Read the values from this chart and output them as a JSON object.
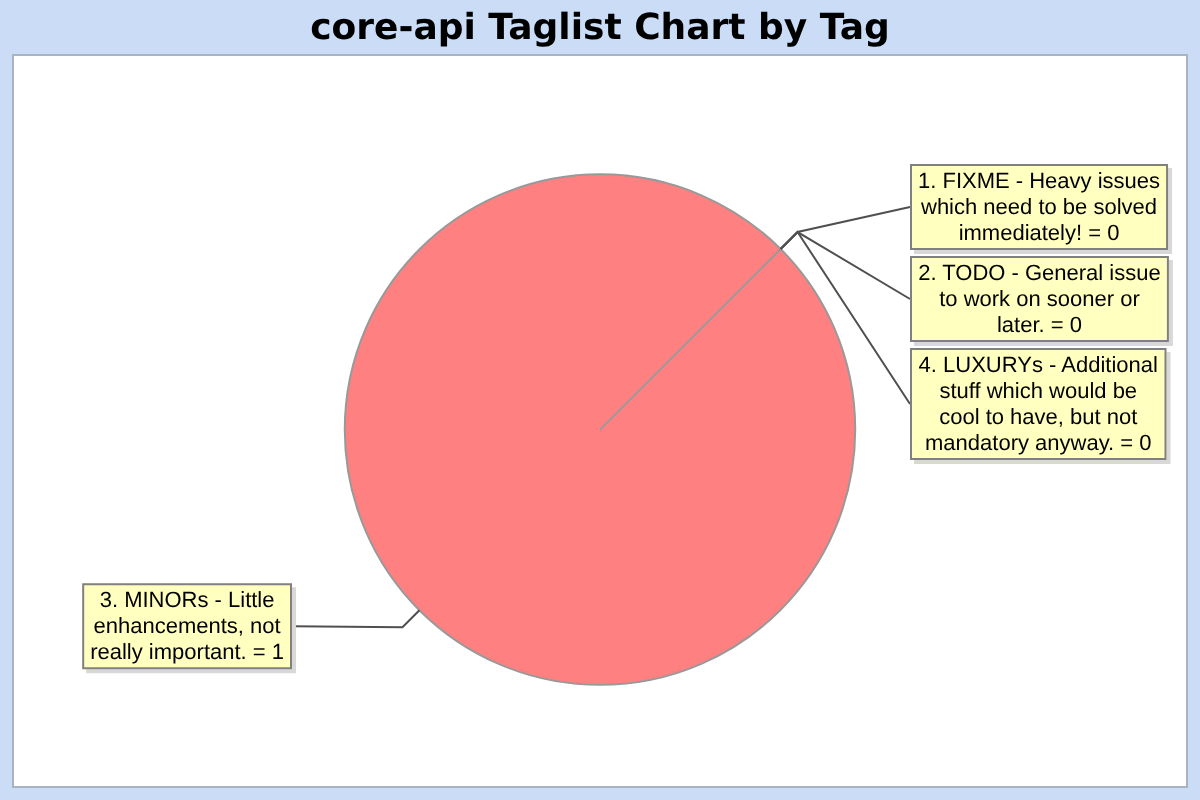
{
  "chart_data": {
    "type": "pie",
    "title": "core-api Taglist Chart by Tag",
    "categories": [
      "1. FIXME - Heavy issues which need to be solved immediately!",
      "2. TODO - General issue to work on sooner or later.",
      "3. MINORs - Little enhancements, not really important.",
      "4. LUXURYs - Additional stuff which would be cool to have, but not mandatory anyway."
    ],
    "values": [
      0,
      0,
      1,
      0
    ],
    "colors": [
      "#ff8080",
      "#ff8080",
      "#ff8080",
      "#ff8080"
    ],
    "value_labels": [
      "= 0",
      "= 0",
      "= 1",
      "= 0"
    ]
  }
}
